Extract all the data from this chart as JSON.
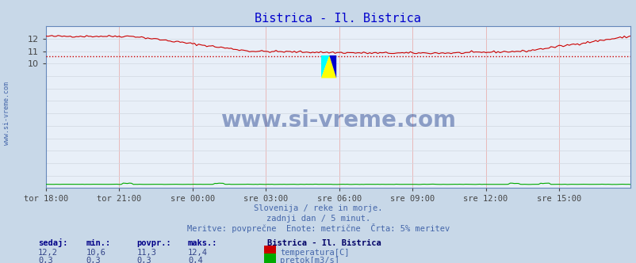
{
  "title": "Bistrica - Il. Bistrica",
  "title_color": "#0000cc",
  "bg_color": "#c8d8e8",
  "plot_bg_color": "#e8eff8",
  "grid_color_v": "#e8c8c8",
  "grid_color_h": "#d0d8e0",
  "x_ticks_labels": [
    "tor 18:00",
    "tor 21:00",
    "sre 00:00",
    "sre 03:00",
    "sre 06:00",
    "sre 09:00",
    "sre 12:00",
    "sre 15:00"
  ],
  "x_ticks_pos": [
    0,
    36,
    72,
    108,
    144,
    180,
    216,
    252
  ],
  "ytick_color": "#444444",
  "temp_color": "#cc0000",
  "flow_color": "#00aa00",
  "avg_line_color": "#cc0000",
  "avg_line_value": 10.6,
  "temp_min": 10.6,
  "temp_max": 12.4,
  "temp_avg": 11.3,
  "temp_current": 12.2,
  "flow_min": 0.3,
  "flow_max": 0.4,
  "flow_avg": 0.3,
  "flow_current": 0.3,
  "subtitle1": "Slovenija / reke in morje.",
  "subtitle2": "zadnji dan / 5 minut.",
  "subtitle3": "Meritve: povprečne  Enote: metrične  Črta: 5% meritev",
  "subtitle_color": "#4466aa",
  "legend_title": "Bistrica - Il. Bistrica",
  "legend_title_color": "#000066",
  "legend_label1": "temperatura[C]",
  "legend_label2": "pretok[m3/s]",
  "legend_color": "#4466aa",
  "table_headers": [
    "sedaj:",
    "min.:",
    "povpr.:",
    "maks.:"
  ],
  "table_header_color": "#000088",
  "table_value_color": "#334488",
  "watermark": "www.si-vreme.com",
  "watermark_color": "#1a3a8a",
  "spine_color": "#6688bb",
  "ylim": [
    0,
    13
  ],
  "yticks": [
    10,
    11,
    12
  ],
  "n_points": 288
}
